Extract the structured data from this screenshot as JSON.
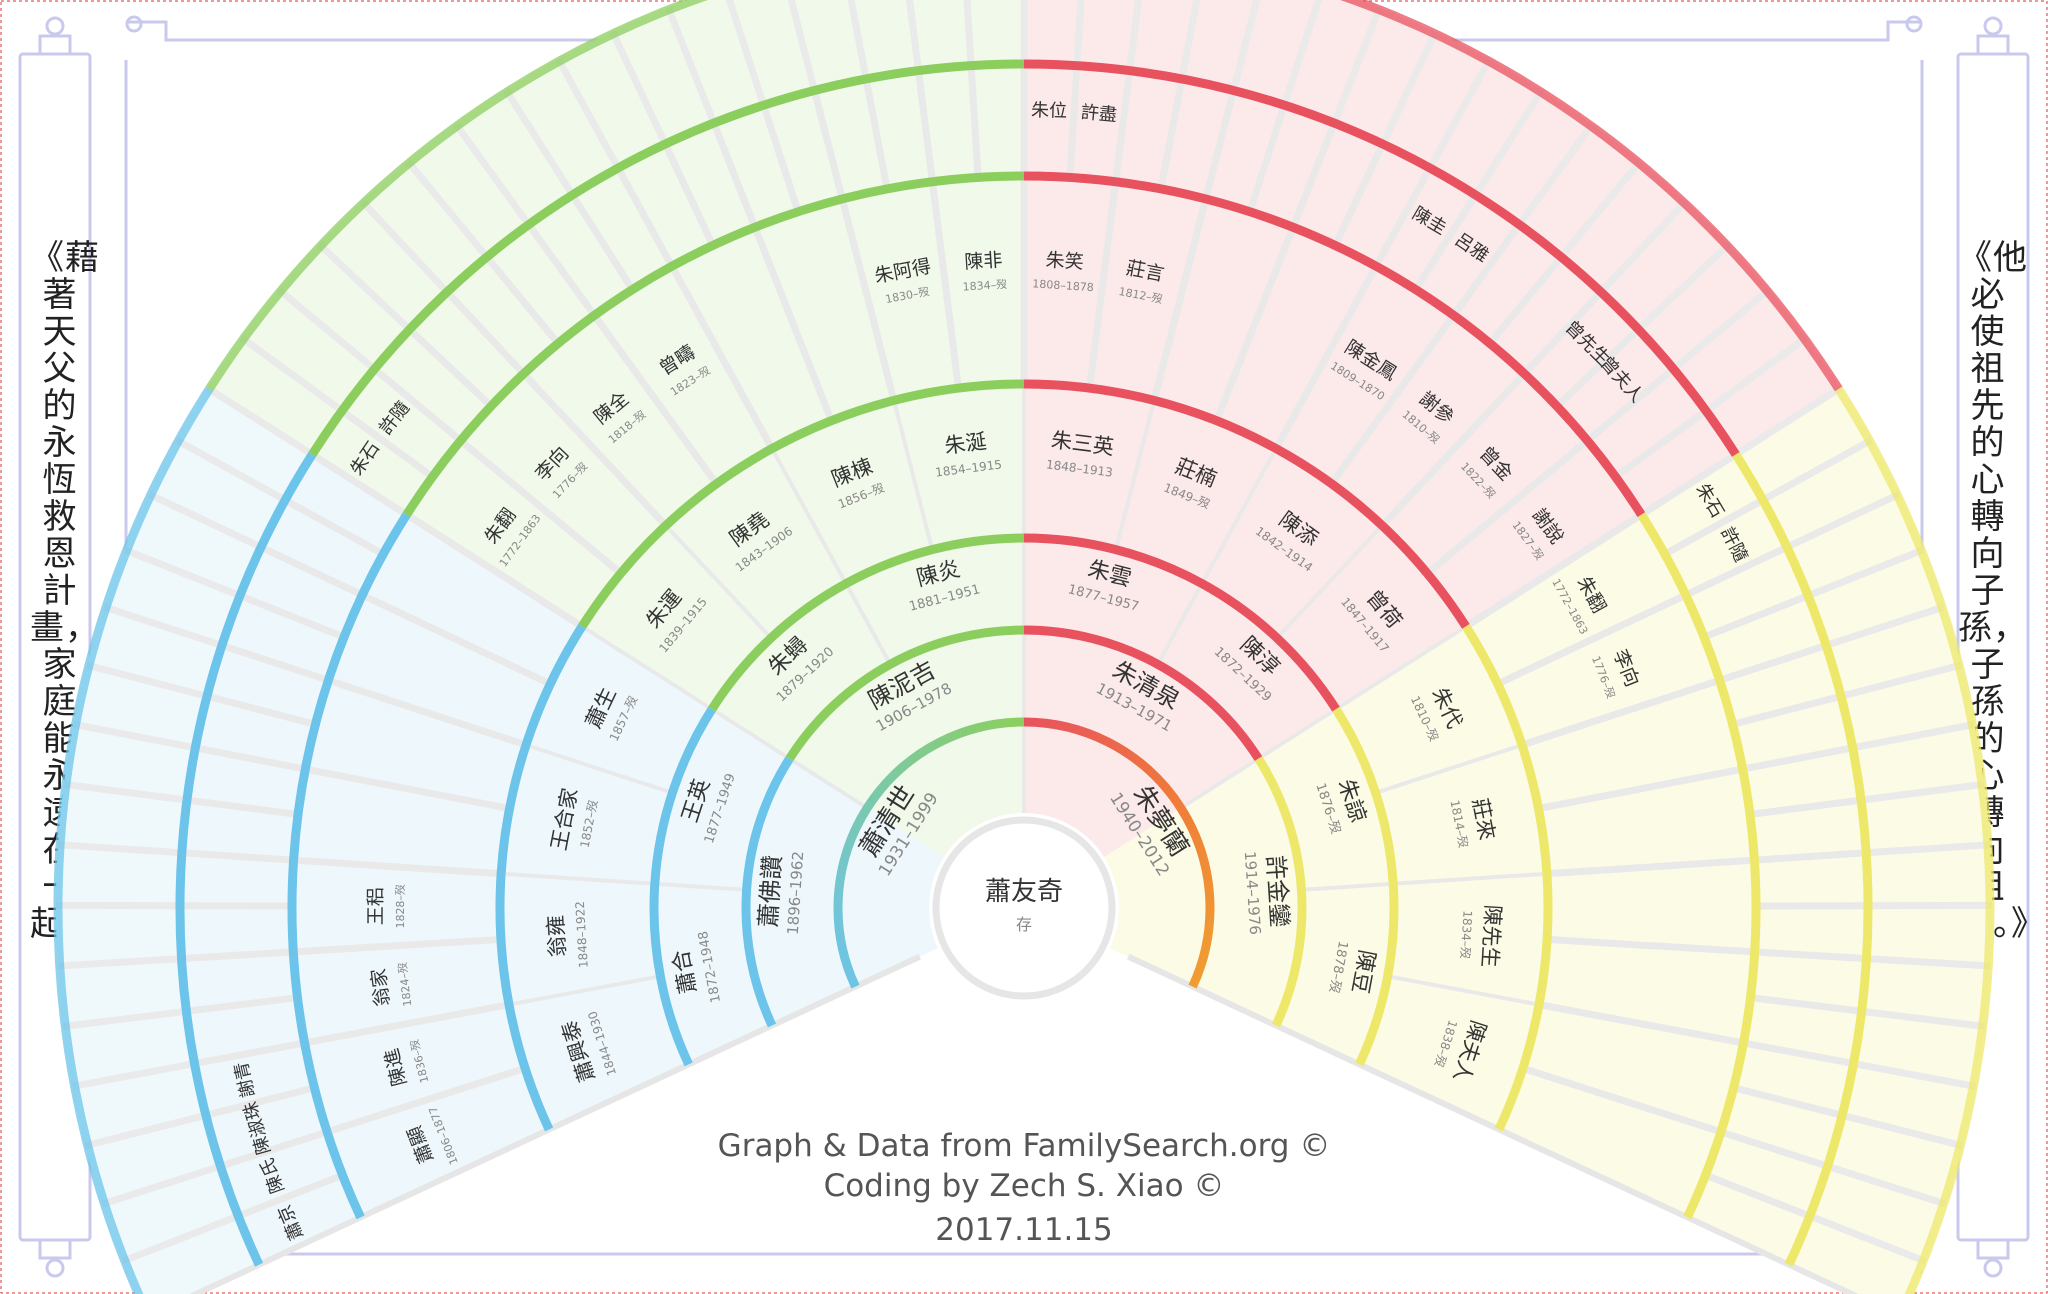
{
  "scrolls": {
    "left": "《藉著天父的永恆救恩計畫，家庭能永遠在一起。》",
    "right": "《他必使祖先的心轉向子孫，子孫的心轉向祖先。》"
  },
  "credits": {
    "line1": "Graph & Data from FamilySearch.org ©",
    "line2": "Coding by Zech S. Xiao ©",
    "line3": "2017.11.15"
  },
  "colors": {
    "green": "#8cce5e",
    "red": "#e8525f",
    "blue": "#6cc4ea",
    "yellow": "#eee86a",
    "orange": "#f0a030",
    "frame": "#c9c9ee"
  },
  "root": {
    "name": "蕭友奇",
    "years": "存"
  },
  "generations": [
    [
      {
        "name": "蕭清世",
        "years": "1931–1999"
      },
      {
        "name": "朱夢蘭",
        "years": "1940–2012"
      }
    ],
    [
      {
        "name": "蕭佛讚",
        "years": "1896–1962"
      },
      {
        "name": "陳泥吉",
        "years": "1906–1978"
      },
      {
        "name": "朱清泉",
        "years": "1913–1971"
      },
      {
        "name": "許金鑾",
        "years": "1914–1976"
      }
    ],
    [
      {
        "name": "蕭合",
        "years": "1872–1948"
      },
      {
        "name": "王英",
        "years": "1877–1949"
      },
      {
        "name": "朱蟳",
        "years": "1879–1920"
      },
      {
        "name": "陳炎",
        "years": "1881–1951"
      },
      {
        "name": "朱雲",
        "years": "1877–1957"
      },
      {
        "name": "陳淳",
        "years": "1872–1929"
      },
      {
        "name": "朱諒",
        "years": "1876–歿"
      },
      {
        "name": "陳豆",
        "years": "1878–歿"
      }
    ],
    [
      {
        "name": "蕭興泰",
        "years": "1844–1930"
      },
      {
        "name": "翁雍",
        "years": "1848–1922"
      },
      {
        "name": "王合家",
        "years": "1852–歿"
      },
      {
        "name": "蕭生",
        "years": "1857–歿"
      },
      {
        "name": "朱運",
        "years": "1839–1915"
      },
      {
        "name": "陳堯",
        "years": "1843–1906"
      },
      {
        "name": "陳棟",
        "years": "1856–歿"
      },
      {
        "name": "朱涎",
        "years": "1854–1915"
      },
      {
        "name": "朱三英",
        "years": "1848–1913"
      },
      {
        "name": "莊楠",
        "years": "1849–歿"
      },
      {
        "name": "陳添",
        "years": "1842–1914"
      },
      {
        "name": "曾荷",
        "years": "1847–1917"
      },
      {
        "name": "朱代",
        "years": "1810–歿"
      },
      {
        "name": "莊來",
        "years": "1814–歿"
      },
      {
        "name": "陳先生",
        "years": "1834–歿"
      },
      {
        "name": "陳夫人",
        "years": "1838–歿"
      }
    ],
    [
      {
        "name": "蕭顯",
        "years": "1806–1877"
      },
      {
        "name": "陳進",
        "years": "1836–歿"
      },
      {
        "name": "翁家",
        "years": "1824–歿"
      },
      {
        "name": "王稆",
        "years": "1828–歿"
      },
      {
        "name": "",
        "years": ""
      },
      {
        "name": "",
        "years": ""
      },
      {
        "name": "",
        "years": ""
      },
      {
        "name": "",
        "years": ""
      },
      {
        "name": "朱翻",
        "years": "1772–1863"
      },
      {
        "name": "李向",
        "years": "1776–歿"
      },
      {
        "name": "陳全",
        "years": "1818–歿"
      },
      {
        "name": "曾疇",
        "years": "1823–歿"
      },
      {
        "name": "",
        "years": ""
      },
      {
        "name": "",
        "years": ""
      },
      {
        "name": "朱阿得",
        "years": "1830–歿"
      },
      {
        "name": "陳非",
        "years": "1834–歿"
      },
      {
        "name": "朱笑",
        "years": "1808–1878"
      },
      {
        "name": "莊言",
        "years": "1812–歿"
      },
      {
        "name": "",
        "years": ""
      },
      {
        "name": "",
        "years": ""
      },
      {
        "name": "陳金鳳",
        "years": "1809–1870"
      },
      {
        "name": "謝參",
        "years": "1810–歿"
      },
      {
        "name": "曾金",
        "years": "1822–歿"
      },
      {
        "name": "謝說",
        "years": "1827–歿"
      },
      {
        "name": "朱翻",
        "years": "1772–1863"
      },
      {
        "name": "李向",
        "years": "1776–歿"
      },
      {
        "name": "",
        "years": ""
      },
      {
        "name": "",
        "years": ""
      },
      {
        "name": "",
        "years": ""
      },
      {
        "name": "",
        "years": ""
      },
      {
        "name": "",
        "years": ""
      },
      {
        "name": "",
        "years": ""
      }
    ],
    [
      {
        "name": "蕭京",
        "years": ""
      },
      {
        "name": "陳氏",
        "years": ""
      },
      {
        "name": "陳淑珠",
        "years": ""
      },
      {
        "name": "謝青",
        "years": ""
      },
      {
        "name": "",
        "years": ""
      },
      {
        "name": "",
        "years": ""
      },
      {
        "name": "",
        "years": ""
      },
      {
        "name": "",
        "years": ""
      },
      {
        "name": "",
        "years": ""
      },
      {
        "name": "",
        "years": ""
      },
      {
        "name": "",
        "years": ""
      },
      {
        "name": "",
        "years": ""
      },
      {
        "name": "",
        "years": ""
      },
      {
        "name": "",
        "years": ""
      },
      {
        "name": "",
        "years": ""
      },
      {
        "name": "",
        "years": ""
      },
      {
        "name": "朱石",
        "years": ""
      },
      {
        "name": "許隨",
        "years": ""
      },
      {
        "name": "",
        "years": ""
      },
      {
        "name": "",
        "years": ""
      },
      {
        "name": "",
        "years": ""
      },
      {
        "name": "",
        "years": ""
      },
      {
        "name": "",
        "years": ""
      },
      {
        "name": "",
        "years": ""
      },
      {
        "name": "",
        "years": ""
      },
      {
        "name": "",
        "years": ""
      },
      {
        "name": "",
        "years": ""
      },
      {
        "name": "",
        "years": ""
      },
      {
        "name": "",
        "years": ""
      },
      {
        "name": "",
        "years": ""
      },
      {
        "name": "",
        "years": ""
      },
      {
        "name": "",
        "years": ""
      },
      {
        "name": "朱位",
        "years": ""
      },
      {
        "name": "許盡",
        "years": ""
      },
      {
        "name": "",
        "years": ""
      },
      {
        "name": "",
        "years": ""
      },
      {
        "name": "",
        "years": ""
      },
      {
        "name": "",
        "years": ""
      },
      {
        "name": "",
        "years": ""
      },
      {
        "name": "",
        "years": ""
      },
      {
        "name": "陳圭",
        "years": ""
      },
      {
        "name": "呂雅",
        "years": ""
      },
      {
        "name": "",
        "years": ""
      },
      {
        "name": "",
        "years": ""
      },
      {
        "name": "曾先生",
        "years": ""
      },
      {
        "name": "曾夫人",
        "years": ""
      },
      {
        "name": "",
        "years": ""
      },
      {
        "name": "",
        "years": ""
      },
      {
        "name": "朱石",
        "years": ""
      },
      {
        "name": "許隨",
        "years": ""
      },
      {
        "name": "",
        "years": ""
      },
      {
        "name": "",
        "years": ""
      },
      {
        "name": "",
        "years": ""
      },
      {
        "name": "",
        "years": ""
      },
      {
        "name": "",
        "years": ""
      },
      {
        "name": "",
        "years": ""
      },
      {
        "name": "",
        "years": ""
      },
      {
        "name": "",
        "years": ""
      },
      {
        "name": "",
        "years": ""
      },
      {
        "name": "",
        "years": ""
      },
      {
        "name": "",
        "years": ""
      },
      {
        "name": "",
        "years": ""
      },
      {
        "name": "",
        "years": ""
      },
      {
        "name": "",
        "years": ""
      }
    ]
  ]
}
